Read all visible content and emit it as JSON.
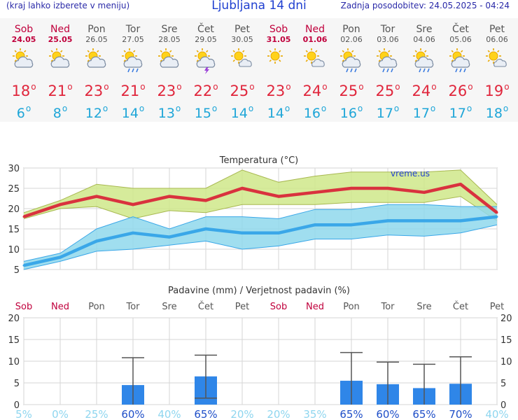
{
  "header": {
    "menu_hint": "(kraj lahko izberete v meniju)",
    "title": "Ljubljana 14 dni",
    "updated": "Zadnja posodobitev: 24.05.2025 - 04:24"
  },
  "days": [
    {
      "name": "Sob",
      "date": "24.05",
      "weekend": true,
      "icon": "partly-cloudy-icon",
      "max": "18",
      "min": "6"
    },
    {
      "name": "Ned",
      "date": "25.05",
      "weekend": true,
      "icon": "partly-cloudy-icon",
      "max": "21",
      "min": "8"
    },
    {
      "name": "Pon",
      "date": "26.05",
      "weekend": false,
      "icon": "partly-cloudy-icon",
      "max": "23",
      "min": "12"
    },
    {
      "name": "Tor",
      "date": "27.05",
      "weekend": false,
      "icon": "sun-cloud-rain-icon",
      "max": "21",
      "min": "14"
    },
    {
      "name": "Sre",
      "date": "28.05",
      "weekend": false,
      "icon": "partly-cloudy-icon",
      "max": "23",
      "min": "13"
    },
    {
      "name": "Čet",
      "date": "29.05",
      "weekend": false,
      "icon": "thunderstorm-icon",
      "max": "22",
      "min": "15"
    },
    {
      "name": "Pet",
      "date": "30.05",
      "weekend": false,
      "icon": "mostly-sunny-icon",
      "max": "25",
      "min": "14"
    },
    {
      "name": "Sob",
      "date": "31.05",
      "weekend": true,
      "icon": "sunny-icon",
      "max": "23",
      "min": "14"
    },
    {
      "name": "Ned",
      "date": "01.06",
      "weekend": true,
      "icon": "mostly-sunny-icon",
      "max": "24",
      "min": "16"
    },
    {
      "name": "Pon",
      "date": "02.06",
      "weekend": false,
      "icon": "sun-cloud-rain-icon",
      "max": "25",
      "min": "16"
    },
    {
      "name": "Tor",
      "date": "03.06",
      "weekend": false,
      "icon": "sun-cloud-rain-icon",
      "max": "25",
      "min": "17"
    },
    {
      "name": "Sre",
      "date": "04.06",
      "weekend": false,
      "icon": "sun-cloud-rain-icon",
      "max": "24",
      "min": "17"
    },
    {
      "name": "Čet",
      "date": "05.06",
      "weekend": false,
      "icon": "sun-cloud-rain-icon",
      "max": "26",
      "min": "17"
    },
    {
      "name": "Pet",
      "date": "06.06",
      "weekend": false,
      "icon": "mostly-sunny-icon",
      "max": "19",
      "min": "18"
    }
  ],
  "colors": {
    "max_text": "#e0263c",
    "min_text": "#1fa6d8",
    "weekend": "#c0003c",
    "weekday": "#555555",
    "max_line": "#d9323e",
    "max_band": "#cfe88a",
    "min_line": "#3aa7e8",
    "min_band": "#8fd8ec",
    "bar": "#2f86e8",
    "prob_high": "#1f4fc8",
    "prob_low": "#8fd6ef"
  },
  "chart_data": [
    {
      "type": "line",
      "title": "Temperatura (°C)",
      "watermark": "vreme.us",
      "ylim": [
        5,
        30
      ],
      "yticks": [
        5,
        10,
        15,
        20,
        25,
        30
      ],
      "grid": true,
      "series": [
        {
          "values": [
            18,
            21,
            23,
            21,
            23,
            22,
            25,
            23,
            24,
            25,
            25,
            24,
            26,
            19
          ],
          "band_low": [
            17.5,
            20,
            20.5,
            17.5,
            19.5,
            19,
            21,
            21,
            21,
            21.5,
            21.5,
            21.5,
            23,
            17
          ],
          "band_high": [
            19,
            22,
            26,
            25,
            25,
            25,
            29.5,
            26.5,
            28,
            29,
            29,
            29,
            29.5,
            21
          ]
        },
        {
          "values": [
            6,
            8,
            12,
            14,
            13,
            15,
            14,
            14,
            16,
            16,
            17,
            17,
            17,
            18
          ],
          "band_low": [
            5,
            7,
            9.5,
            10,
            11,
            12,
            10,
            10.8,
            12.5,
            12.5,
            13.5,
            13.2,
            14,
            16
          ],
          "band_high": [
            7,
            9,
            15,
            18,
            15,
            18,
            18,
            17.5,
            19.8,
            19.8,
            21,
            21,
            20.5,
            20.5
          ]
        }
      ]
    },
    {
      "type": "bar",
      "title": "Padavine (mm) / Verjetnost padavin (%)",
      "ylim": [
        0,
        20
      ],
      "yticks": [
        0,
        5,
        10,
        15,
        20
      ],
      "grid": true,
      "categories": [
        "Sob",
        "Ned",
        "Pon",
        "Tor",
        "Sre",
        "Čet",
        "Pet",
        "Sob",
        "Ned",
        "Pon",
        "Tor",
        "Sre",
        "Čet",
        "Pet"
      ],
      "values": [
        0,
        0,
        0,
        4.5,
        0,
        6.5,
        0,
        0,
        0,
        5.5,
        4.7,
        3.8,
        4.8,
        0
      ],
      "range_low": [
        null,
        null,
        null,
        0,
        null,
        1.5,
        null,
        null,
        null,
        0,
        0,
        0,
        0,
        null
      ],
      "range_high": [
        null,
        null,
        null,
        10.8,
        null,
        11.4,
        null,
        null,
        null,
        12,
        9.8,
        9.3,
        11,
        null
      ],
      "probability": [
        "5%",
        "0%",
        "25%",
        "60%",
        "40%",
        "65%",
        "20%",
        "20%",
        "35%",
        "65%",
        "60%",
        "65%",
        "70%",
        "40%"
      ]
    }
  ]
}
